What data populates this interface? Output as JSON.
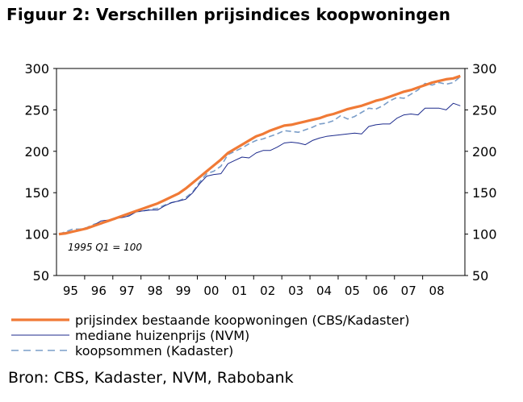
{
  "header": {
    "title": "Figuur 2: Verschillen prijsindices koopwoningen"
  },
  "footer": {
    "source": "Bron: CBS, Kadaster, NVM, Rabobank"
  },
  "chart_data": {
    "type": "line",
    "title": "Figuur 2: Verschillen prijsindices koopwoningen",
    "annotation": "1995 Q1 = 100",
    "xlabel": "",
    "ylabel": "",
    "ylim": [
      50,
      300
    ],
    "yticks": [
      50,
      100,
      150,
      200,
      250,
      300
    ],
    "x_tick_labels": [
      "95",
      "96",
      "97",
      "98",
      "99",
      "00",
      "01",
      "02",
      "03",
      "04",
      "05",
      "06",
      "07",
      "08"
    ],
    "x_start": "1995 Q1",
    "x_step": "quarter",
    "grid": false,
    "legend_position": "bottom",
    "series": [
      {
        "name": "prijsindex bestaande koopwoningen (CBS/Kadaster)",
        "color": "#f07a36",
        "style": "solid-thick",
        "values": [
          100,
          101,
          103,
          105,
          107,
          110,
          113,
          116,
          119,
          122,
          125,
          128,
          131,
          134,
          137,
          141,
          145,
          149,
          155,
          162,
          169,
          176,
          183,
          190,
          198,
          203,
          208,
          213,
          218,
          221,
          225,
          228,
          231,
          232,
          234,
          236,
          238,
          240,
          243,
          245,
          248,
          251,
          253,
          255,
          258,
          261,
          263,
          266,
          269,
          272,
          274,
          277,
          280,
          283,
          285,
          287,
          288,
          291
        ]
      },
      {
        "name": "mediane huizenprijs (NVM)",
        "color": "#1c2a8c",
        "style": "solid-thin",
        "values": [
          100,
          102,
          104,
          105,
          108,
          111,
          116,
          117,
          119,
          120,
          122,
          127,
          128,
          129,
          129,
          134,
          138,
          140,
          142,
          150,
          161,
          170,
          172,
          173,
          185,
          189,
          193,
          192,
          198,
          201,
          201,
          205,
          210,
          211,
          210,
          208,
          213,
          216,
          218,
          219,
          220,
          221,
          222,
          221,
          230,
          232,
          233,
          233,
          240,
          244,
          245,
          244,
          252,
          252,
          252,
          250,
          258,
          255
        ]
      },
      {
        "name": "koopsommen (Kadaster)",
        "color": "#7a9dc8",
        "style": "dashed",
        "values": [
          100,
          103,
          106,
          106,
          108,
          112,
          114,
          116,
          118,
          121,
          123,
          127,
          128,
          130,
          131,
          135,
          138,
          140,
          144,
          151,
          163,
          173,
          176,
          182,
          196,
          200,
          204,
          209,
          213,
          215,
          218,
          221,
          225,
          224,
          223,
          226,
          229,
          233,
          234,
          237,
          243,
          239,
          242,
          247,
          252,
          251,
          255,
          261,
          265,
          264,
          269,
          274,
          282,
          280,
          283,
          281,
          283,
          290
        ]
      }
    ]
  }
}
